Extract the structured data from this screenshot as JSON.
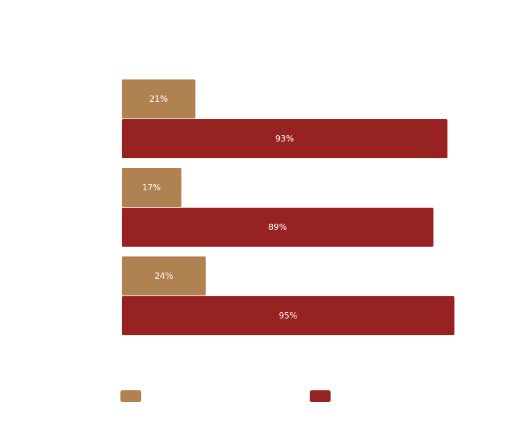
{
  "chart_data": {
    "type": "hbar",
    "categories": [
      null,
      null,
      null
    ],
    "series": [
      {
        "color": "#b08251",
        "values": [
          21,
          17,
          24
        ],
        "value_labels": [
          "21%",
          "17%",
          "24%"
        ]
      },
      {
        "color": "#962221",
        "values": [
          93,
          89,
          95
        ],
        "value_labels": [
          "93%",
          "89%",
          "95%"
        ]
      }
    ],
    "xlim": [
      0,
      100
    ]
  }
}
